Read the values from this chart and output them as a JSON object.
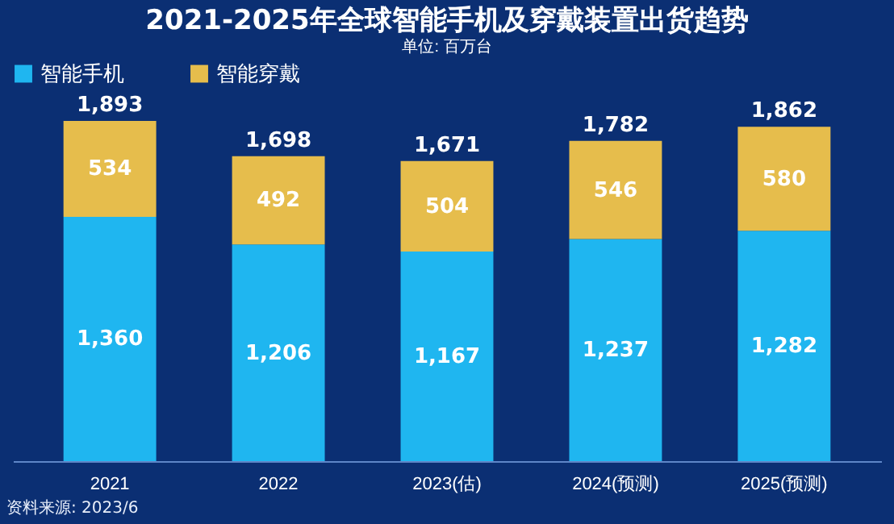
{
  "chart_data": {
    "type": "bar",
    "title": "2021-2025年全球智能手机及穿戴装置出货趋势",
    "subtitle": "单位: 百万台",
    "categories": [
      "2021",
      "2022",
      "2023(估)",
      "2024(预测)",
      "2025(预测)"
    ],
    "stacked": true,
    "legend": "top",
    "tick_labels": "x",
    "series": [
      {
        "name": "智能手机",
        "color": "#1fb6f0",
        "values": [
          1360,
          1206,
          1167,
          1237,
          1282
        ],
        "value_labels": [
          "1,360",
          "1,206",
          "1,167",
          "1,237",
          "1,282"
        ]
      },
      {
        "name": "智能穿戴",
        "color": "#e6bd4c",
        "values": [
          534,
          492,
          504,
          546,
          580
        ],
        "value_labels": [
          "534",
          "492",
          "504",
          "546",
          "580"
        ]
      }
    ],
    "totals": [
      "1,893",
      "1,698",
      "1,671",
      "1,782",
      "1,862"
    ],
    "annotations": [
      "资料来源: 2023/6"
    ]
  }
}
